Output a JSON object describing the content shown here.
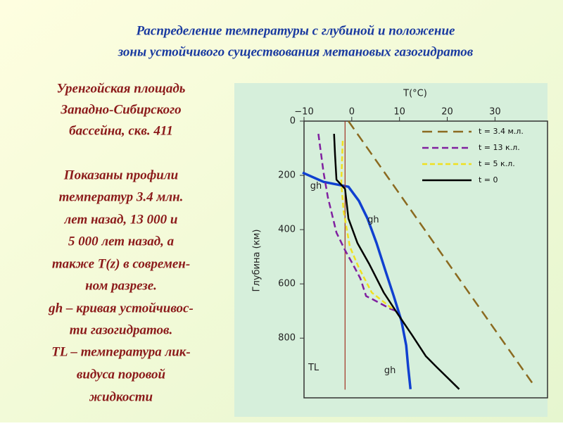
{
  "slide": {
    "title": [
      "Распределение температуры с глубиной и положение",
      "зоны устойчивого существования метановых газогидратов"
    ],
    "caption": [
      "Уренгойская площадь",
      "Западно-Сибирского",
      "бассейна, скв. 411",
      "Показаны профили",
      "температур 3.4 млн.",
      "лет назад, 13 000 и",
      "5 000 лет назад, а",
      "также T(z) в современ-",
      "ном разрезе.",
      "gh – кривая устойчивос-",
      "ти газогидратов.",
      "TL – температура лик-",
      "видуса поровой",
      "жидкости"
    ]
  },
  "chart_data": {
    "type": "line",
    "xlabel": "T(°C)",
    "ylabel": "Глубина (км)",
    "xlim": [
      -10,
      41
    ],
    "xticks": [
      {
        "value": -10,
        "label": "−10"
      },
      0,
      10,
      20,
      30
    ],
    "ylim": [
      0,
      1020
    ],
    "yticks": [
      0,
      200,
      400,
      600,
      800
    ],
    "y_inverted": true,
    "legend": "upper right",
    "series": [
      {
        "name": "t = 3.4 м.л.",
        "color": "#8b6a20",
        "dash": "14 8",
        "x": [
          -0.7,
          38
        ],
        "values": [
          0,
          970
        ]
      },
      {
        "name": "t = 13 к.л.",
        "color": "#8020a0",
        "dash": "9 5",
        "x": [
          -7.0,
          -5.9,
          -5.0,
          -3.2,
          -1.4,
          0,
          1.8,
          3.0,
          4.5,
          8.1,
          9.6
        ],
        "values": [
          47,
          190,
          281,
          411,
          476,
          520,
          580,
          645,
          658,
          692,
          702
        ]
      },
      {
        "name": "t = 5 к.л.",
        "color": "#f0e020",
        "dash": "7 4",
        "x": [
          -1.9,
          -2.2,
          -1.7,
          -0.4,
          1.5,
          4.2,
          8.9
        ],
        "values": [
          73,
          229,
          333,
          463,
          541,
          632,
          697
        ]
      },
      {
        "name": "t = 0",
        "color": "#000000",
        "dash": null,
        "x": [
          -3.7,
          -3.5,
          -3.2,
          -1.4,
          -0.7,
          1.2,
          3.7,
          6.7,
          9.6,
          12.6,
          15.5,
          17.7,
          20.7,
          22.5
        ],
        "values": [
          47,
          125,
          216,
          250,
          359,
          450,
          528,
          632,
          710,
          788,
          866,
          905,
          957,
          988
        ]
      }
    ],
    "curves": [
      {
        "color": "#1040d0",
        "x": [
          -10.3,
          -5.9,
          -0.7,
          1.5,
          3.3,
          5.2,
          7.1,
          8.8,
          10.4,
          11.4,
          11.8,
          12.3
        ],
        "values": [
          190,
          224,
          242,
          294,
          359,
          450,
          554,
          645,
          736,
          827,
          905,
          988
        ]
      },
      {
        "color": "#a03020",
        "x": [
          -1.4,
          -1.4
        ],
        "values": [
          0,
          990
        ]
      }
    ],
    "annotations": [
      {
        "text": "gh",
        "x": -7.5,
        "y": 240
      },
      {
        "text": "gh",
        "x": 4.5,
        "y": 365
      },
      {
        "text": "gh",
        "x": 8,
        "y": 920
      },
      {
        "text": "TL",
        "x": -8,
        "y": 910
      }
    ]
  }
}
